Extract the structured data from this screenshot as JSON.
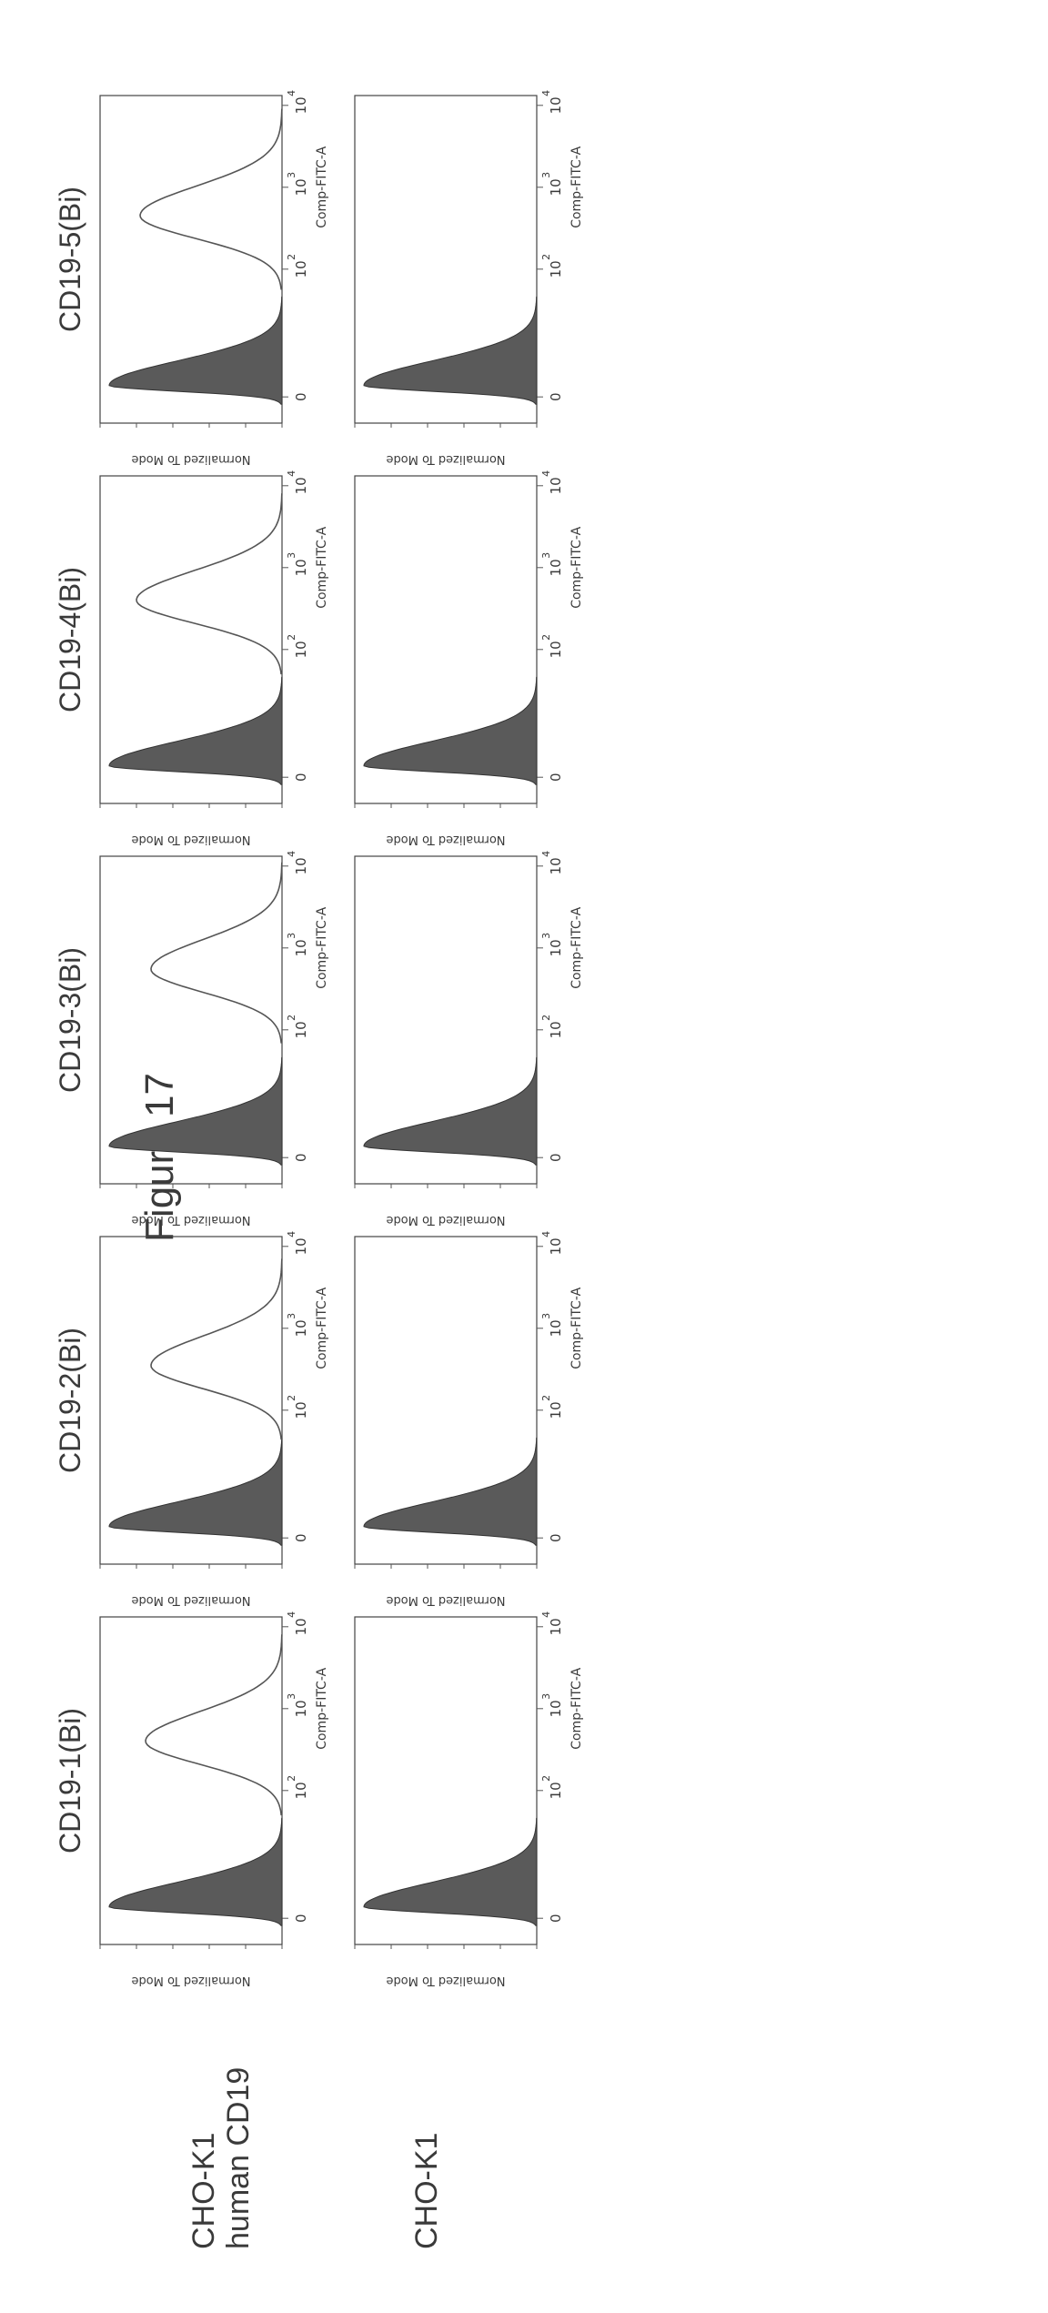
{
  "figure_title": "Figure 17",
  "row_labels": [
    [
      "CHO-K1",
      "human CD19"
    ],
    [
      "CHO-K1"
    ]
  ],
  "colors": {
    "filled_histogram": "#5a5a5a",
    "open_histogram": "#555555",
    "frame": "#444444"
  },
  "chart_data": [
    {
      "type": "area",
      "title": "CD19-1(Bi)",
      "row": "CHO-K1 human CD19",
      "xlabel": "Comp-FITC-A",
      "ylabel": "Normalized To Mode",
      "xticks": [
        "0",
        "10",
        "10",
        "10"
      ],
      "xtick_exponents": [
        "",
        "2",
        "3",
        "4"
      ],
      "x_scale": "biexponential",
      "series": [
        {
          "style": "filled",
          "peak_x": "~0",
          "peak_y": 95
        },
        {
          "style": "open",
          "peak_x": "~400",
          "peak_y": 75
        }
      ]
    },
    {
      "type": "area",
      "title": "",
      "row": "CHO-K1",
      "xlabel": "Comp-FITC-A",
      "ylabel": "Normalized To Mode",
      "xticks": [
        "0",
        "10",
        "10",
        "10"
      ],
      "xtick_exponents": [
        "",
        "2",
        "3",
        "4"
      ],
      "x_scale": "biexponential",
      "series": [
        {
          "style": "filled",
          "peak_x": "~0",
          "peak_y": 95
        }
      ]
    },
    {
      "type": "area",
      "title": "CD19-2(Bi)",
      "row": "CHO-K1 human CD19",
      "xlabel": "Comp-FITC-A",
      "ylabel": "Normalized To Mode",
      "xticks": [
        "0",
        "10",
        "10",
        "10"
      ],
      "xtick_exponents": [
        "",
        "2",
        "3",
        "4"
      ],
      "x_scale": "biexponential",
      "series": [
        {
          "style": "filled",
          "peak_x": "~0",
          "peak_y": 95
        },
        {
          "style": "open",
          "peak_x": "~350",
          "peak_y": 72
        }
      ]
    },
    {
      "type": "area",
      "title": "",
      "row": "CHO-K1",
      "xlabel": "Comp-FITC-A",
      "ylabel": "Normalized To Mode",
      "xticks": [
        "0",
        "10",
        "10",
        "10"
      ],
      "xtick_exponents": [
        "",
        "2",
        "3",
        "4"
      ],
      "x_scale": "biexponential",
      "series": [
        {
          "style": "filled",
          "peak_x": "~0",
          "peak_y": 95
        }
      ]
    },
    {
      "type": "area",
      "title": "CD19-3(Bi)",
      "row": "CHO-K1 human CD19",
      "xlabel": "Comp-FITC-A",
      "ylabel": "Normalized To Mode",
      "xticks": [
        "0",
        "10",
        "10",
        "10"
      ],
      "xtick_exponents": [
        "",
        "2",
        "3",
        "4"
      ],
      "x_scale": "biexponential",
      "series": [
        {
          "style": "filled",
          "peak_x": "~0",
          "peak_y": 95
        },
        {
          "style": "open",
          "peak_x": "~550",
          "peak_y": 72
        }
      ]
    },
    {
      "type": "area",
      "title": "",
      "row": "CHO-K1",
      "xlabel": "Comp-FITC-A",
      "ylabel": "Normalized To Mode",
      "xticks": [
        "0",
        "10",
        "10",
        "10"
      ],
      "xtick_exponents": [
        "",
        "2",
        "3",
        "4"
      ],
      "x_scale": "biexponential",
      "series": [
        {
          "style": "filled",
          "peak_x": "~0",
          "peak_y": 95
        }
      ]
    },
    {
      "type": "area",
      "title": "CD19-4(Bi)",
      "row": "CHO-K1 human CD19",
      "xlabel": "Comp-FITC-A",
      "ylabel": "Normalized To Mode",
      "xticks": [
        "0",
        "10",
        "10",
        "10"
      ],
      "xtick_exponents": [
        "",
        "2",
        "3",
        "4"
      ],
      "x_scale": "biexponential",
      "series": [
        {
          "style": "filled",
          "peak_x": "~0",
          "peak_y": 95
        },
        {
          "style": "open",
          "peak_x": "~400",
          "peak_y": 80
        }
      ]
    },
    {
      "type": "area",
      "title": "",
      "row": "CHO-K1",
      "xlabel": "Comp-FITC-A",
      "ylabel": "Normalized To Mode",
      "xticks": [
        "0",
        "10",
        "10",
        "10"
      ],
      "xtick_exponents": [
        "",
        "2",
        "3",
        "4"
      ],
      "x_scale": "biexponential",
      "series": [
        {
          "style": "filled",
          "peak_x": "~0",
          "peak_y": 95
        }
      ]
    },
    {
      "type": "area",
      "title": "CD19-5(Bi)",
      "row": "CHO-K1 human CD19",
      "xlabel": "Comp-FITC-A",
      "ylabel": "Normalized To Mode",
      "xticks": [
        "0",
        "10",
        "10",
        "10"
      ],
      "xtick_exponents": [
        "",
        "2",
        "3",
        "4"
      ],
      "x_scale": "biexponential",
      "series": [
        {
          "style": "filled",
          "peak_x": "~0",
          "peak_y": 95
        },
        {
          "style": "open",
          "peak_x": "~450",
          "peak_y": 78
        }
      ]
    },
    {
      "type": "area",
      "title": "",
      "row": "CHO-K1",
      "xlabel": "Comp-FITC-A",
      "ylabel": "Normalized To Mode",
      "xticks": [
        "0",
        "10",
        "10",
        "10"
      ],
      "xtick_exponents": [
        "",
        "2",
        "3",
        "4"
      ],
      "x_scale": "biexponential",
      "series": [
        {
          "style": "filled",
          "peak_x": "~0",
          "peak_y": 95
        }
      ]
    }
  ]
}
